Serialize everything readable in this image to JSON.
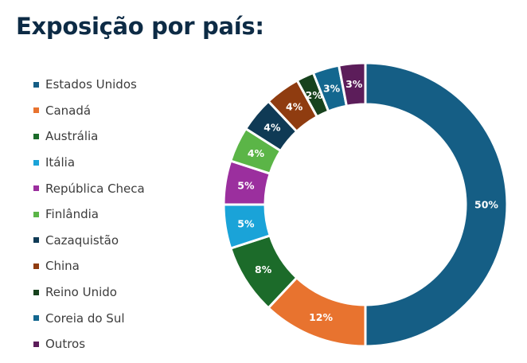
{
  "title": "Exposição por país:",
  "chart_data": {
    "type": "pie",
    "subtype": "donut",
    "title": "Exposição por país:",
    "legend_position": "left",
    "categories": [
      "Estados Unidos",
      "Canadá",
      "Austrália",
      "Itália",
      "República Checa",
      "Finlândia",
      "Cazaquistão",
      "China",
      "Reino Unido",
      "Coreia do Sul",
      "Outros"
    ],
    "values": [
      50,
      12,
      8,
      5,
      5,
      4,
      4,
      4,
      2,
      3,
      3
    ],
    "labels": [
      "50%",
      "12%",
      "8%",
      "5%",
      "5%",
      "4%",
      "4%",
      "4%",
      "2%",
      "3%",
      "3%"
    ],
    "colors": [
      "#155e85",
      "#e8732f",
      "#1c6b2a",
      "#1aa3d8",
      "#9b2f9e",
      "#5bb547",
      "#0f3a55",
      "#8f3c10",
      "#17421d",
      "#13678f",
      "#5c1d5a"
    ]
  }
}
